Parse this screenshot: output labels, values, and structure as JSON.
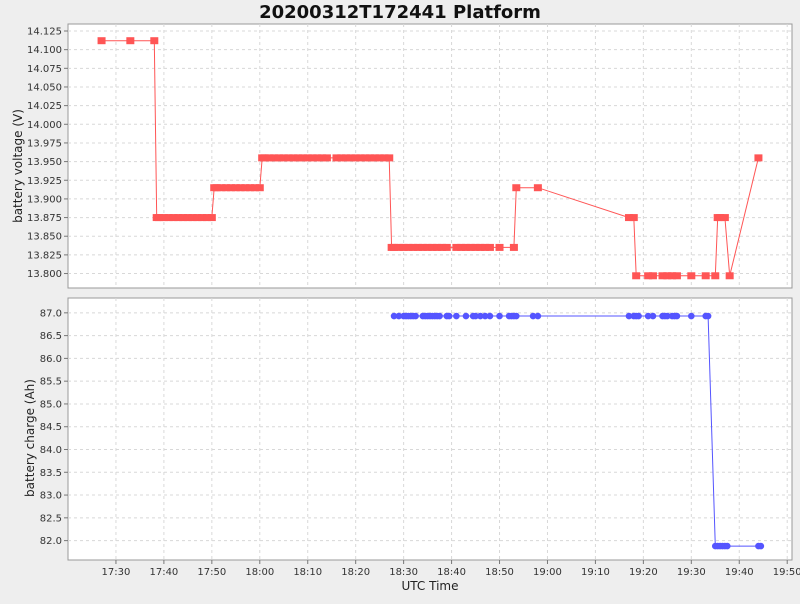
{
  "chart_data": {
    "title": "20200312T172441 Platform",
    "xlabel": "UTC Time",
    "grid": true,
    "x_ticks": [
      "17:30",
      "17:40",
      "17:50",
      "18:00",
      "18:10",
      "18:20",
      "18:30",
      "18:40",
      "18:50",
      "19:00",
      "19:10",
      "19:20",
      "19:30",
      "19:40",
      "19:50"
    ],
    "xlim": [
      "17:20",
      "19:51"
    ],
    "panels": [
      {
        "id": "voltage",
        "type": "line",
        "ylabel": "battery voltage (V)",
        "ylim": [
          13.79,
          14.125
        ],
        "y_ticks": [
          "14.125",
          "14.100",
          "14.075",
          "14.050",
          "14.025",
          "14.000",
          "13.975",
          "13.950",
          "13.925",
          "13.900",
          "13.875",
          "13.850",
          "13.825",
          "13.800"
        ],
        "color": "#ff5555",
        "marker": "square",
        "series": [
          {
            "x": [
              "17:27",
              "17:33",
              "17:38",
              "17:38:30",
              "17:39",
              "17:40",
              "17:41",
              "17:42",
              "17:43",
              "17:44",
              "17:45",
              "17:46",
              "17:47",
              "17:48",
              "17:49",
              "17:50",
              "17:50:30",
              "17:51",
              "17:52",
              "17:53",
              "17:54",
              "17:55",
              "17:56",
              "17:57",
              "17:58",
              "17:59",
              "18:00",
              "18:00:30",
              "18:01",
              "18:02",
              "18:03",
              "18:04",
              "18:05",
              "18:06",
              "18:07",
              "18:08",
              "18:09",
              "18:10",
              "18:11",
              "18:12",
              "18:13",
              "18:14",
              "18:16",
              "18:17",
              "18:18",
              "18:19",
              "18:20",
              "18:21",
              "18:22",
              "18:23",
              "18:24",
              "18:25",
              "18:26",
              "18:27",
              "18:27:30",
              "18:28",
              "18:29",
              "18:30",
              "18:31",
              "18:32",
              "18:33",
              "18:34",
              "18:35",
              "18:36",
              "18:37",
              "18:38",
              "18:39",
              "18:41",
              "18:42",
              "18:43",
              "18:44",
              "18:45",
              "18:46",
              "18:47",
              "18:48",
              "18:50",
              "18:53",
              "18:53:30",
              "18:58",
              "19:17",
              "19:18",
              "19:18:30",
              "19:21",
              "19:22",
              "19:24",
              "19:25",
              "19:26",
              "19:27",
              "19:30",
              "19:33",
              "19:35",
              "19:35:30",
              "19:36",
              "19:37",
              "19:38",
              "19:44"
            ],
            "y": [
              14.112,
              14.112,
              14.112,
              13.875,
              13.875,
              13.875,
              13.875,
              13.875,
              13.875,
              13.875,
              13.875,
              13.875,
              13.875,
              13.875,
              13.875,
              13.875,
              13.915,
              13.915,
              13.915,
              13.915,
              13.915,
              13.915,
              13.915,
              13.915,
              13.915,
              13.915,
              13.915,
              13.955,
              13.955,
              13.955,
              13.955,
              13.955,
              13.955,
              13.955,
              13.955,
              13.955,
              13.955,
              13.955,
              13.955,
              13.955,
              13.955,
              13.955,
              13.955,
              13.955,
              13.955,
              13.955,
              13.955,
              13.955,
              13.955,
              13.955,
              13.955,
              13.955,
              13.955,
              13.955,
              13.835,
              13.835,
              13.835,
              13.835,
              13.835,
              13.835,
              13.835,
              13.835,
              13.835,
              13.835,
              13.835,
              13.835,
              13.835,
              13.835,
              13.835,
              13.835,
              13.835,
              13.835,
              13.835,
              13.835,
              13.835,
              13.835,
              13.835,
              13.915,
              13.915,
              13.875,
              13.875,
              13.797,
              13.797,
              13.797,
              13.797,
              13.797,
              13.797,
              13.797,
              13.797,
              13.797,
              13.797,
              13.875,
              13.875,
              13.875,
              13.797,
              13.955
            ]
          }
        ]
      },
      {
        "id": "charge",
        "type": "line",
        "ylabel": "battery charge (Ah)",
        "ylim": [
          81.75,
          87.15
        ],
        "y_ticks": [
          "87.0",
          "86.5",
          "86.0",
          "85.5",
          "85.0",
          "84.5",
          "84.0",
          "83.5",
          "83.0",
          "82.5",
          "82.0"
        ],
        "color": "#5555ff",
        "marker": "circle",
        "series": [
          {
            "x": [
              "18:28",
              "18:29",
              "18:30",
              "18:30:30",
              "18:31",
              "18:31:30",
              "18:32",
              "18:32:30",
              "18:34",
              "18:34:30",
              "18:35",
              "18:35:30",
              "18:36",
              "18:36:30",
              "18:37",
              "18:37:30",
              "18:39",
              "18:39:30",
              "18:41",
              "18:43",
              "18:44:30",
              "18:45",
              "18:46",
              "18:47",
              "18:48",
              "18:50",
              "18:52",
              "18:52:30",
              "18:53",
              "18:53:30",
              "18:57",
              "18:58",
              "19:17",
              "19:18",
              "19:18:30",
              "19:19",
              "19:21",
              "19:22",
              "19:24",
              "19:24:30",
              "19:25",
              "19:26",
              "19:26:30",
              "19:27",
              "19:30",
              "19:33",
              "19:33:30",
              "19:35",
              "19:35:30",
              "19:36",
              "19:36:30",
              "19:37",
              "19:37:30",
              "19:44",
              "19:44:30"
            ],
            "y": [
              86.93,
              86.93,
              86.93,
              86.93,
              86.93,
              86.93,
              86.93,
              86.93,
              86.93,
              86.93,
              86.93,
              86.93,
              86.93,
              86.93,
              86.93,
              86.93,
              86.93,
              86.93,
              86.93,
              86.93,
              86.93,
              86.93,
              86.93,
              86.93,
              86.93,
              86.93,
              86.93,
              86.93,
              86.93,
              86.93,
              86.93,
              86.93,
              86.93,
              86.93,
              86.93,
              86.93,
              86.93,
              86.93,
              86.93,
              86.93,
              86.93,
              86.93,
              86.93,
              86.93,
              86.93,
              86.93,
              86.93,
              81.88,
              81.88,
              81.88,
              81.88,
              81.88,
              81.88,
              81.88,
              81.88
            ]
          }
        ]
      }
    ]
  }
}
